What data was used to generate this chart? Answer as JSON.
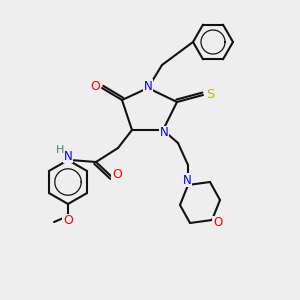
{
  "bg_color": "#eeeeee",
  "atom_colors": {
    "N": "#0000ff",
    "O": "#ff0000",
    "S": "#bbbb00",
    "C": "#000000",
    "H": "#408080"
  },
  "bond_color": "#111111",
  "bond_lw": 1.5,
  "font_size": 8.5
}
